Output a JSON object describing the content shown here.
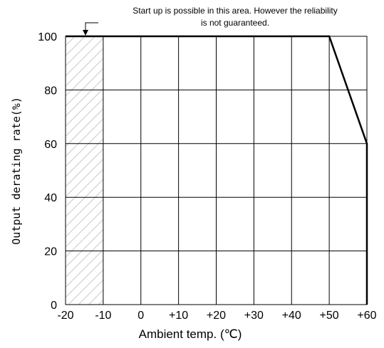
{
  "chart_data": {
    "type": "line",
    "xlabel": "Ambient temp. (℃)",
    "ylabel": "Output derating rate(%)",
    "xlim": [
      -20,
      60
    ],
    "ylim": [
      0,
      100
    ],
    "x_ticks": [
      "-20",
      "-10",
      "0",
      "+10",
      "+20",
      "+30",
      "+40",
      "+50",
      "+60"
    ],
    "y_ticks": [
      "0",
      "20",
      "40",
      "60",
      "80",
      "100"
    ],
    "grid": true,
    "series": [
      {
        "points": [
          [
            -20,
            100
          ],
          [
            50,
            100
          ],
          [
            60,
            60
          ],
          [
            60,
            0
          ]
        ]
      }
    ],
    "shaded_region": {
      "x_range": [
        -20,
        -10
      ],
      "pattern": "diagonal-hatch",
      "color": "#c8c8c8"
    },
    "annotation": {
      "line1": "Start up is possible in this area. However the reliability",
      "line2": "is not guaranteed."
    }
  }
}
